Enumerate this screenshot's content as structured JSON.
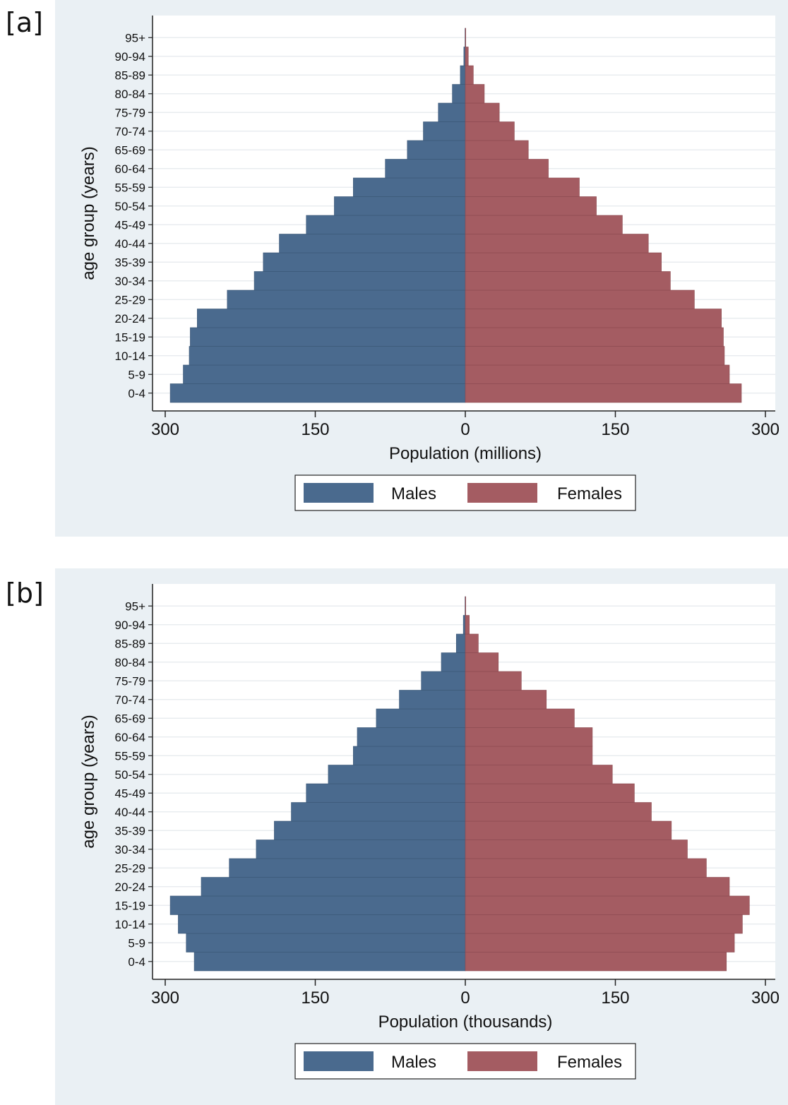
{
  "chart_data": [
    {
      "panel_label": "[a]",
      "type": "bar",
      "orientation": "horizontal",
      "layout": "population-pyramid",
      "categories": [
        "0-4",
        "5-9",
        "10-14",
        "15-19",
        "20-24",
        "25-29",
        "30-34",
        "35-39",
        "40-44",
        "45-49",
        "50-54",
        "55-59",
        "60-64",
        "65-69",
        "70-74",
        "75-79",
        "80-84",
        "85-89",
        "90-94",
        "95+"
      ],
      "series": [
        {
          "name": "Males",
          "color": "#4a6a8e",
          "values": [
            295,
            282,
            276,
            275,
            268,
            238,
            211,
            202,
            186,
            159,
            131,
            112,
            80,
            58,
            42,
            27,
            13,
            5,
            1.5,
            0.3
          ]
        },
        {
          "name": "Females",
          "color": "#a45c62",
          "values": [
            276,
            264,
            259,
            258,
            256,
            229,
            205,
            196,
            183,
            157,
            131,
            114,
            83,
            63,
            49,
            34,
            19,
            8,
            3,
            0.5
          ]
        }
      ],
      "xlabel": "Population (millions)",
      "ylabel": "age group (years)",
      "xlim": [
        -300,
        300
      ],
      "xticks": [
        -300,
        -150,
        0,
        150,
        300
      ],
      "xtick_labels": [
        "300",
        "150",
        "0",
        "150",
        "300"
      ],
      "grid": true,
      "legend_position": "bottom"
    },
    {
      "panel_label": "[b]",
      "type": "bar",
      "orientation": "horizontal",
      "layout": "population-pyramid",
      "categories": [
        "0-4",
        "5-9",
        "10-14",
        "15-19",
        "20-24",
        "25-29",
        "30-34",
        "35-39",
        "40-44",
        "45-49",
        "50-54",
        "55-59",
        "60-64",
        "65-69",
        "70-74",
        "75-79",
        "80-84",
        "85-89",
        "90-94",
        "95+"
      ],
      "series": [
        {
          "name": "Males",
          "color": "#4a6a8e",
          "values": [
            271,
            279,
            287,
            295,
            264,
            236,
            209,
            191,
            174,
            159,
            137,
            112,
            108,
            89,
            66,
            44,
            24,
            9,
            2,
            0.3
          ]
        },
        {
          "name": "Females",
          "color": "#a45c62",
          "values": [
            261,
            269,
            277,
            284,
            264,
            241,
            222,
            206,
            186,
            169,
            147,
            127,
            127,
            109,
            81,
            56,
            33,
            13,
            4,
            0.5
          ]
        }
      ],
      "xlabel": "Population (thousands)",
      "ylabel": "age group (years)",
      "xlim": [
        -300,
        300
      ],
      "xticks": [
        -300,
        -150,
        0,
        150,
        300
      ],
      "xtick_labels": [
        "300",
        "150",
        "0",
        "150",
        "300"
      ],
      "grid": true,
      "legend_position": "bottom"
    }
  ]
}
